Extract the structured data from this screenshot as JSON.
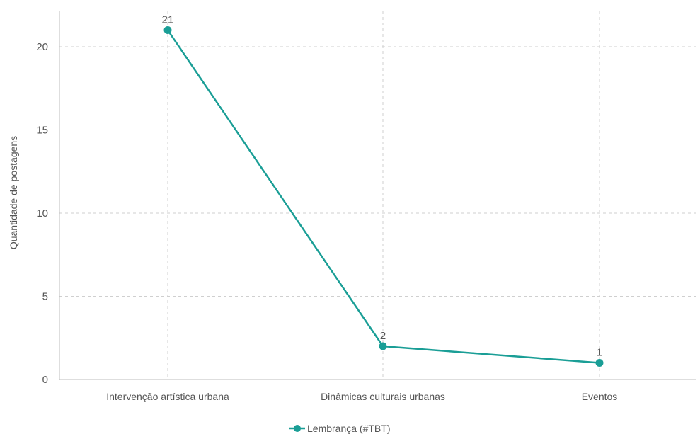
{
  "chart_data": {
    "type": "line",
    "categories": [
      "Intervenção artística urbana",
      "Dinâmicas culturais urbanas",
      "Eventos"
    ],
    "series": [
      {
        "name": "Lembrança (#TBT)",
        "values": [
          21,
          2,
          1
        ],
        "color": "#1a9e96"
      }
    ],
    "data_labels": [
      "21",
      "2",
      "1"
    ],
    "ylabel": "Quantidade de postagens",
    "xlabel": "",
    "ylim": [
      0,
      22
    ],
    "yticks": [
      0,
      5,
      10,
      15,
      20
    ],
    "grid": true,
    "legend_position": "bottom-center"
  }
}
